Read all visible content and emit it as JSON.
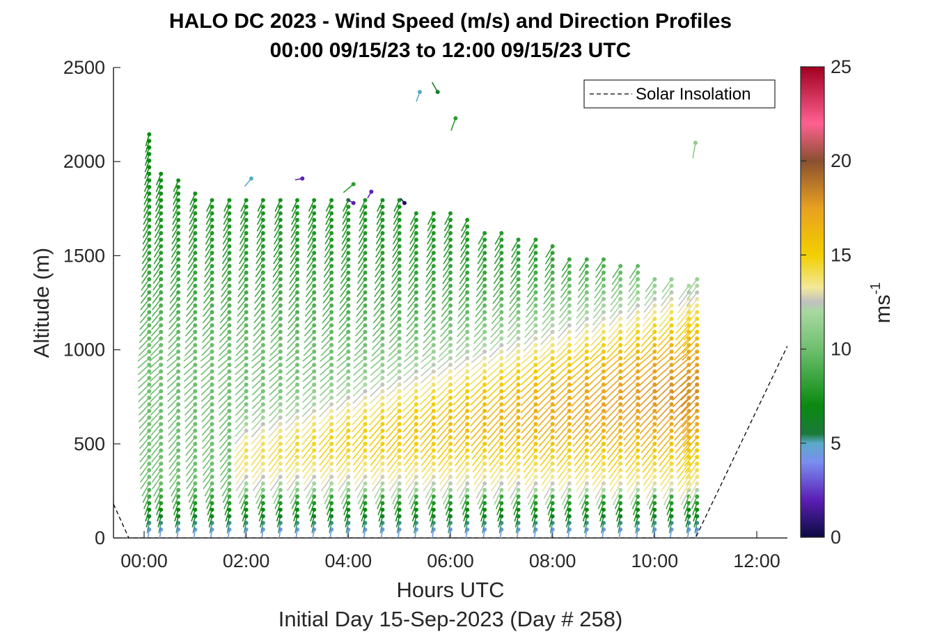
{
  "chart_data": {
    "type": "scatter",
    "title_line1": "HALO DC 2023 - Wind Speed (m/s) and Direction Profiles",
    "title_line2": "00:00 09/15/23 to 12:00 09/15/23  UTC",
    "xlabel": "Hours UTC",
    "xlabel2": "Initial Day 15-Sep-2023 (Day # 258)",
    "ylabel": "Altitude (m)",
    "x_ticks": [
      "00:00",
      "02:00",
      "04:00",
      "06:00",
      "08:00",
      "10:00",
      "12:00"
    ],
    "y_ticks": [
      "0",
      "500",
      "1000",
      "1500",
      "2000",
      "2500"
    ],
    "ylim": [
      0,
      2500
    ],
    "xlim_hours": [
      -0.6,
      12.6
    ],
    "colorbar": {
      "label": "ms",
      "label_sup": "-1",
      "ticks": [
        "0",
        "5",
        "10",
        "15",
        "20",
        "25"
      ],
      "range": [
        0,
        25
      ]
    },
    "legend": {
      "entries": [
        "Solar Insolation"
      ],
      "placement": "top-right"
    },
    "profiles": {
      "times_hours": [
        0.1,
        0.33,
        0.67,
        1.0,
        1.33,
        1.67,
        2.0,
        2.33,
        2.67,
        3.0,
        3.33,
        3.67,
        4.0,
        4.33,
        4.67,
        5.0,
        5.33,
        5.67,
        6.0,
        6.33,
        6.67,
        7.0,
        7.33,
        7.67,
        8.0,
        8.33,
        8.67,
        9.0,
        9.33,
        9.67,
        10.0,
        10.33,
        10.67,
        10.83
      ],
      "top_altitude_m": [
        2150,
        1950,
        1900,
        1850,
        1800,
        1800,
        1800,
        1800,
        1800,
        1800,
        1800,
        1800,
        1800,
        1800,
        1800,
        1800,
        1750,
        1750,
        1750,
        1700,
        1650,
        1650,
        1600,
        1600,
        1550,
        1500,
        1500,
        1500,
        1450,
        1450,
        1400,
        1400,
        1350,
        1400
      ],
      "altitude_step_m": 35,
      "speed_profile_description_ms": [
        {
          "alt": 50,
          "speed": 4.5
        },
        {
          "alt": 150,
          "speed": 7
        },
        {
          "alt": 300,
          "speed": 10
        },
        {
          "alt": 600,
          "speed": 10
        },
        {
          "alt": 1000,
          "speed": 10
        },
        {
          "alt": 1500,
          "speed": 8
        },
        {
          "alt": 2000,
          "speed": 7
        }
      ],
      "jet_core": {
        "start_hour": 2.0,
        "peak_hour": 10.5,
        "peak_speed_ms": 18,
        "center_alt_m": 800
      }
    },
    "sparse_points": [
      {
        "hour": 5.4,
        "alt": 2370,
        "speed": 5,
        "dir": 200
      },
      {
        "hour": 5.75,
        "alt": 2370,
        "speed": 6,
        "dir": 330
      },
      {
        "hour": 6.1,
        "alt": 2230,
        "speed": 8,
        "dir": 200
      },
      {
        "hour": 10.8,
        "alt": 2100,
        "speed": 11,
        "dir": 190
      },
      {
        "hour": 3.1,
        "alt": 1910,
        "speed": 2,
        "dir": 260
      },
      {
        "hour": 2.1,
        "alt": 1910,
        "speed": 5,
        "dir": 220
      },
      {
        "hour": 4.1,
        "alt": 1880,
        "speed": 8,
        "dir": 230
      },
      {
        "hour": 4.1,
        "alt": 1780,
        "speed": 2,
        "dir": 300
      },
      {
        "hour": 4.45,
        "alt": 1840,
        "speed": 2,
        "dir": 210
      },
      {
        "hour": 5.1,
        "alt": 1780,
        "speed": 0.5,
        "dir": 320
      }
    ],
    "solar_insolation_line": [
      {
        "hour": -0.6,
        "alt": 180
      },
      {
        "hour": -0.3,
        "alt": 0
      },
      {
        "hour": 10.8,
        "alt": 0
      },
      {
        "hour": 12.6,
        "alt": 1020
      }
    ]
  }
}
